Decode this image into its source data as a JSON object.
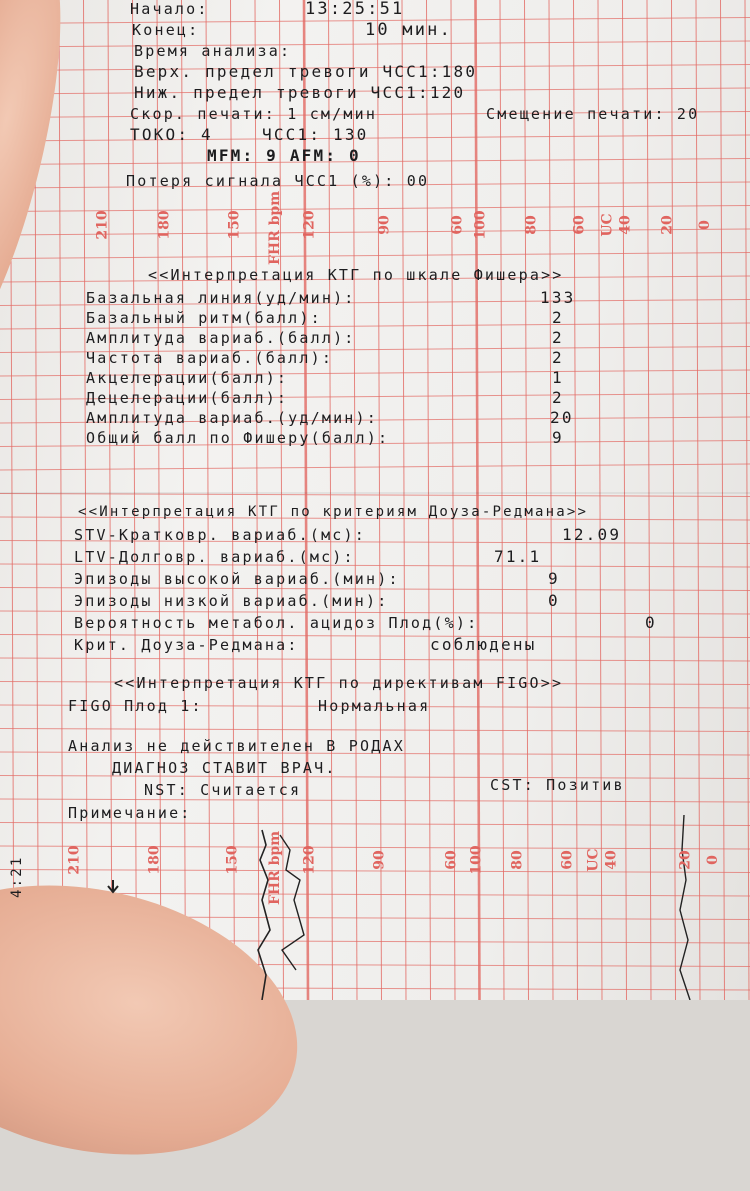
{
  "header": {
    "start_label": "Начало:",
    "start_value": "13:25:51",
    "end_label": "Конец:",
    "analysis_time_value": "10 мин.",
    "analysis_time_label": "Время анализа:",
    "upper_alarm": "Верх. предел тревоги ЧСС1:180",
    "lower_alarm": "Ниж. предел тревоги ЧСС1:120",
    "print_speed": "Скор. печати: 1 см/мин",
    "print_offset": "Смещение печати: 20",
    "toco": "ТОКО: 4",
    "fhr1": "ЧСС1: 130",
    "mfm_afm": "MFM: 9 AFM: 0",
    "signal_loss": "Потеря сигнала ЧСС1 (%): 00"
  },
  "fisher": {
    "title": "<<Интерпретация КТГ по шкале Фишера>>",
    "rows": [
      {
        "label": "Базальная линия(уд/мин):",
        "value": "133"
      },
      {
        "label": "Базальный ритм(балл):",
        "value": "2"
      },
      {
        "label": "Амплитуда вариаб.(балл):",
        "value": "2"
      },
      {
        "label": "Частота вариаб.(балл):",
        "value": "2"
      },
      {
        "label": "Акцелерации(балл):",
        "value": "1"
      },
      {
        "label": "Децелерации(балл):",
        "value": "2"
      },
      {
        "label": "Амплитуда вариаб.(уд/мин):",
        "value": "20"
      },
      {
        "label": "Общий балл по Фишеру(балл):",
        "value": "9"
      }
    ]
  },
  "dawes_redman": {
    "title": "<<Интерпретация КТГ по критериям Доуза-Редмана>>",
    "rows": [
      {
        "label": "STV-Кратковр. вариаб.(мс):",
        "value": "12.09"
      },
      {
        "label": "LTV-Долговр. вариаб.(мс):",
        "value": "71.1"
      },
      {
        "label": "Эпизоды высокой вариаб.(мин):",
        "value": "9"
      },
      {
        "label": "Эпизоды низкой вариаб.(мин):",
        "value": "0"
      },
      {
        "label": "Вероятность метабол. ацидоз Плод(%):",
        "value": "0"
      },
      {
        "label": "Крит. Доуза-Редмана:",
        "value": "соблюдены"
      }
    ]
  },
  "figo": {
    "title": "<<Интерпретация КТГ по директивам FIGO>>",
    "label": "FIGO Плод 1:",
    "value": "Нормальная"
  },
  "footer": {
    "warning": "Анализ не действителен В РОДАХ",
    "diagnosis": "ДИАГНОЗ СТАВИТ ВРАЧ.",
    "nst": "NST: Считается",
    "cst": "CST: Позитив",
    "note": "Примечание:",
    "time_mark": "4:21"
  },
  "scale": {
    "fhr_ticks": [
      "210",
      "180",
      "150",
      "120",
      "90",
      "60"
    ],
    "fhr_unit": "FHR bpm",
    "uc_ticks": [
      "100",
      "80",
      "60",
      "40",
      "20",
      "0"
    ],
    "uc_unit": "UC"
  },
  "colors": {
    "grid": "#e36a64",
    "ink": "#1d1d1f",
    "paper": "#f1f0ee"
  }
}
